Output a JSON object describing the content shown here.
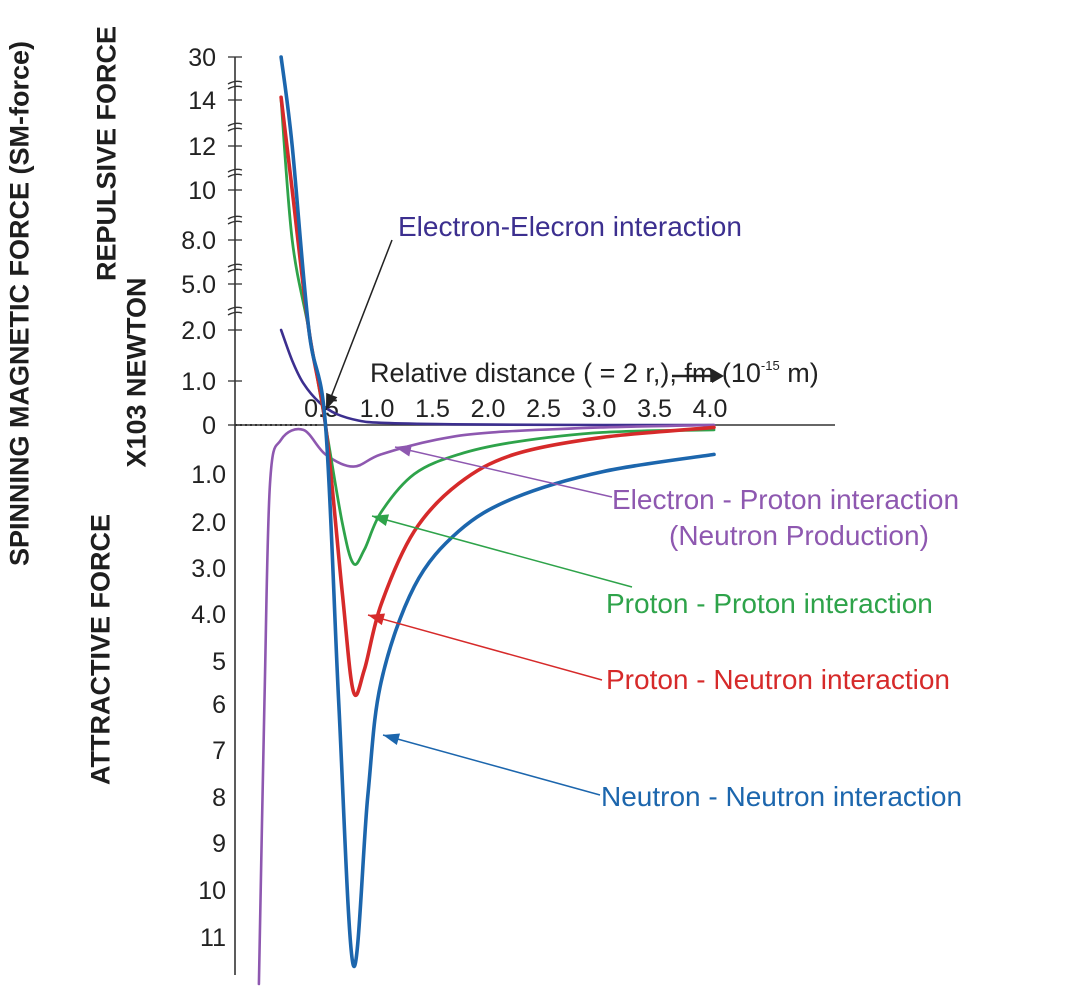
{
  "chart_data": {
    "type": "line",
    "ylabel_main": "SPINNING MAGNETIC FORCE (SM-force)",
    "ylabel_units": "X103 NEWTON",
    "ylabel_repulsive": "REPULSIVE FORCE",
    "ylabel_attractive": "ATTRACTIVE FORCE",
    "xlabel": "Relative distance (   = 2 r,), fm (10",
    "xlabel_exp": "-15",
    "xlabel_end": " m)",
    "xlim": [
      0,
      4.0
    ],
    "x_ticks": [
      "0.5",
      "1.0",
      "1.5",
      "2.0",
      "2.5",
      "3.0",
      "3.5",
      "4.0"
    ],
    "y_ticks_repulsive": [
      "30",
      "14",
      "12",
      "10",
      "8.0",
      "5.0",
      "2.0",
      "1.0",
      "0"
    ],
    "y_ticks_attractive": [
      "1.0",
      "2.0",
      "3.0",
      "4.0",
      "5",
      "6",
      "7",
      "8",
      "9",
      "10",
      "11"
    ],
    "series": [
      {
        "name": "Electron-Elecron interaction",
        "color": "#3c2f8f",
        "x": [
          0.1,
          0.2,
          0.3,
          0.45,
          0.6,
          0.8,
          1.0,
          1.5,
          2.0,
          3.0,
          4.0
        ],
        "y": [
          2.0,
          1.4,
          0.95,
          0.5,
          0.25,
          0.1,
          0.05,
          0.02,
          0.01,
          0.0,
          0.0
        ]
      },
      {
        "name": "Electron - Proton interaction\n(Neutron Production)",
        "color": "#8e58b0",
        "x": [
          -0.1,
          -0.05,
          0.0,
          0.1,
          0.3,
          0.5,
          0.75,
          1.0,
          1.5,
          2.0,
          3.0,
          4.0
        ],
        "y": [
          -12,
          -6,
          -1.2,
          -0.3,
          -0.1,
          -0.6,
          -0.85,
          -0.6,
          -0.3,
          -0.15,
          -0.05,
          0.0
        ]
      },
      {
        "name": "Proton - Proton interaction",
        "color": "#2ea34a",
        "x": [
          0.1,
          0.2,
          0.35,
          0.5,
          0.65,
          0.75,
          0.85,
          1.0,
          1.3,
          1.7,
          2.2,
          3.0,
          4.0
        ],
        "y": [
          14,
          8,
          2.0,
          0.0,
          -2.0,
          -2.9,
          -2.6,
          -1.8,
          -1.0,
          -0.6,
          -0.35,
          -0.15,
          -0.1
        ]
      },
      {
        "name": "Proton - Neutron interaction",
        "color": "#d62a2a",
        "x": [
          0.1,
          0.2,
          0.35,
          0.5,
          0.65,
          0.75,
          0.85,
          1.0,
          1.3,
          1.7,
          2.2,
          3.0,
          4.0
        ],
        "y": [
          15,
          10,
          2.0,
          0.0,
          -3.5,
          -5.7,
          -5.2,
          -3.8,
          -2.2,
          -1.2,
          -0.6,
          -0.25,
          -0.05
        ]
      },
      {
        "name": "Neutron - Neutron interaction",
        "color": "#1c66ad",
        "x": [
          0.1,
          0.2,
          0.35,
          0.5,
          0.62,
          0.75,
          0.88,
          1.0,
          1.3,
          1.7,
          2.2,
          3.0,
          4.0
        ],
        "y": [
          30,
          12,
          2.0,
          0.0,
          -6.0,
          -11.6,
          -8.0,
          -5.5,
          -3.4,
          -2.2,
          -1.5,
          -0.95,
          -0.6
        ]
      }
    ],
    "annotations": [
      {
        "text": "Electron-Elecron interaction",
        "color": "#3c2f8f"
      },
      {
        "text": "Electron - Proton interaction",
        "text2": "(Neutron Production)",
        "color": "#8e58b0"
      },
      {
        "text": "Proton - Proton interaction",
        "color": "#2ea34a"
      },
      {
        "text": "Proton - Neutron interaction",
        "color": "#d62a2a"
      },
      {
        "text": "Neutron - Neutron interaction",
        "color": "#1c66ad"
      }
    ],
    "grid": false
  }
}
